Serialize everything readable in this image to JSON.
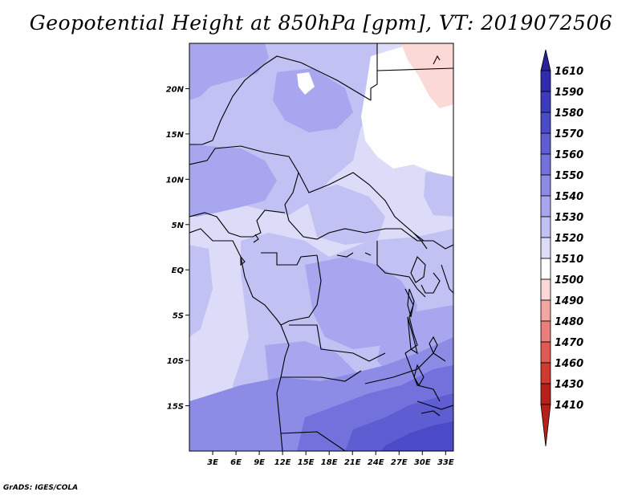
{
  "chart_data": {
    "type": "heatmap",
    "title": "Geopotential Height at 850hPa [gpm], VT: 2019072506",
    "xlabel": "",
    "ylabel": "",
    "xlim": [
      0,
      34
    ],
    "ylim": [
      -20,
      25
    ],
    "x_ticks": [
      {
        "value": 3,
        "label": "3E"
      },
      {
        "value": 6,
        "label": "6E"
      },
      {
        "value": 9,
        "label": "9E"
      },
      {
        "value": 12,
        "label": "12E"
      },
      {
        "value": 15,
        "label": "15E"
      },
      {
        "value": 18,
        "label": "18E"
      },
      {
        "value": 21,
        "label": "21E"
      },
      {
        "value": 24,
        "label": "24E"
      },
      {
        "value": 27,
        "label": "27E"
      },
      {
        "value": 30,
        "label": "30E"
      },
      {
        "value": 33,
        "label": "33E"
      }
    ],
    "y_ticks": [
      {
        "value": 20,
        "label": "20N"
      },
      {
        "value": 15,
        "label": "15N"
      },
      {
        "value": 10,
        "label": "10N"
      },
      {
        "value": 5,
        "label": "5N"
      },
      {
        "value": 0,
        "label": "EQ"
      },
      {
        "value": -5,
        "label": "5S"
      },
      {
        "value": -10,
        "label": "10S"
      },
      {
        "value": -15,
        "label": "15S"
      }
    ],
    "colorbar": {
      "labels": [
        "1610",
        "1590",
        "1580",
        "1570",
        "1560",
        "1550",
        "1540",
        "1530",
        "1520",
        "1510",
        "1500",
        "1490",
        "1480",
        "1470",
        "1460",
        "1430",
        "1410"
      ],
      "colors": [
        "#27239a",
        "#2f2cae",
        "#3d3bbd",
        "#4b4ac8",
        "#5e5dd2",
        "#7372dc",
        "#8c8be5",
        "#a7a6ee",
        "#c2c1f4",
        "#dcdcf8",
        "#fefefe",
        "#fbd9d7",
        "#f3a7a2",
        "#e97f78",
        "#df5a52",
        "#cf3a31",
        "#b8211b"
      ]
    },
    "regions": [
      {
        "level": "1520",
        "value": 1520,
        "lon": [
          0,
          34
        ],
        "lat": [
          -20,
          25
        ],
        "color": "#dcdcf8"
      },
      {
        "level": "1530",
        "value": 1530,
        "lon": [
          0,
          34
        ],
        "lat": [
          -20,
          25
        ],
        "color": "#c2c1f4"
      },
      {
        "level": "1540",
        "value": 1540,
        "lon": [
          0,
          34
        ],
        "lat": [
          -20,
          25
        ],
        "color": "#a7a6ee"
      },
      {
        "level": "1510",
        "value": 1510,
        "lon": [
          0,
          34
        ],
        "lat": [
          -20,
          25
        ],
        "color": "#fefefe"
      },
      {
        "level": "1500",
        "value": 1500,
        "lon": [
          0,
          34
        ],
        "lat": [
          -20,
          25
        ],
        "color": "#fbd9d7"
      },
      {
        "level": "1550",
        "value": 1550,
        "lon": [
          0,
          34
        ],
        "lat": [
          -20,
          25
        ],
        "color": "#8c8be5"
      },
      {
        "level": "1560",
        "value": 1560,
        "lon": [
          0,
          34
        ],
        "lat": [
          -20,
          25
        ],
        "color": "#7372dc"
      },
      {
        "level": "1570",
        "value": 1570,
        "lon": [
          0,
          34
        ],
        "lat": [
          -20,
          25
        ],
        "color": "#5e5dd2"
      },
      {
        "level": "1580",
        "value": 1580,
        "lon": [
          0,
          34
        ],
        "lat": [
          -20,
          25
        ],
        "color": "#4b4ac8"
      }
    ]
  },
  "footer": {
    "credit": "GrADS: IGES/COLA"
  }
}
